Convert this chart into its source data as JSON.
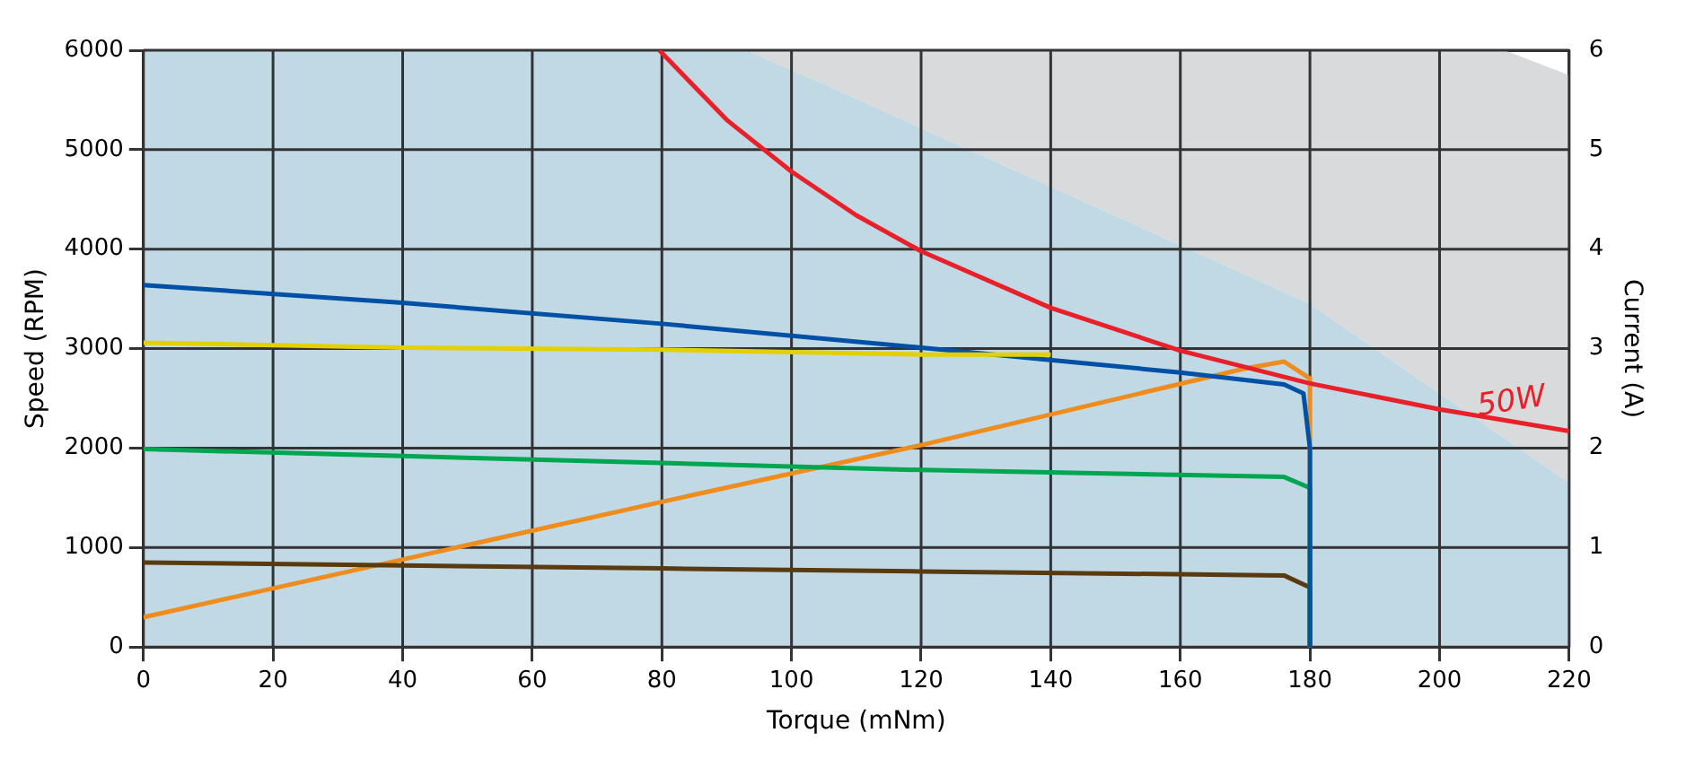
{
  "chart_data": {
    "type": "line",
    "xlabel": "Torque (mNm)",
    "ylabel": "Speed (RPM)",
    "y2label": "Current (A)",
    "xlim": [
      0,
      220
    ],
    "xticks": [
      0,
      20,
      40,
      60,
      80,
      100,
      120,
      140,
      160,
      180,
      200,
      220
    ],
    "ylim": [
      0,
      6000
    ],
    "yticks": [
      0,
      1000,
      2000,
      3000,
      4000,
      5000,
      6000
    ],
    "y2lim": [
      0,
      6
    ],
    "y2ticks": [
      0,
      1,
      2,
      3,
      4,
      5,
      6
    ],
    "grid": true,
    "legend": false,
    "marker": "none",
    "line_style": "solid",
    "series": [
      {
        "type": "area",
        "color": "#d9dadc",
        "x": [
          0,
          93,
          105,
          180,
          210,
          220
        ],
        "values": [
          6000,
          6000,
          6000,
          6000,
          6000,
          5750
        ]
      },
      {
        "type": "area",
        "color": "#c0d9e5",
        "x": [
          0,
          93,
          105,
          180,
          220
        ],
        "values": [
          6000,
          6000,
          5660,
          3450,
          1650
        ]
      },
      {
        "color": "#e8202a",
        "x": [
          79.6,
          90,
          100,
          110,
          120,
          140,
          160,
          180,
          200,
          220
        ],
        "values": [
          6000,
          5300,
          4780,
          4340,
          3980,
          3410,
          2980,
          2650,
          2390,
          2170
        ]
      },
      {
        "color": "#e3d000",
        "x": [
          0,
          40,
          80,
          120,
          140
        ],
        "values": [
          3060,
          3010,
          2990,
          2940,
          2940
        ]
      },
      {
        "color": "#0050a5",
        "x": [
          0,
          40,
          80,
          120,
          160,
          176,
          179,
          180,
          180
        ],
        "values": [
          3640,
          3460,
          3250,
          3010,
          2760,
          2640,
          2550,
          2000,
          0
        ]
      },
      {
        "color": "#00a650",
        "x": [
          0,
          40,
          80,
          120,
          176,
          180,
          180
        ],
        "values": [
          1990,
          1920,
          1850,
          1780,
          1710,
          1600,
          0
        ]
      },
      {
        "color": "#5a3a10",
        "x": [
          0,
          40,
          80,
          120,
          176,
          180,
          180
        ],
        "values": [
          850,
          820,
          790,
          760,
          720,
          600,
          0
        ]
      },
      {
        "color": "#ee8c1e",
        "axis": "y2",
        "x": [
          0,
          40,
          80,
          120,
          170,
          176,
          180,
          180
        ],
        "values": [
          0.3,
          0.88,
          1.46,
          2.03,
          2.8,
          2.87,
          2.7,
          0
        ]
      }
    ],
    "annotations": [
      "50W"
    ]
  }
}
